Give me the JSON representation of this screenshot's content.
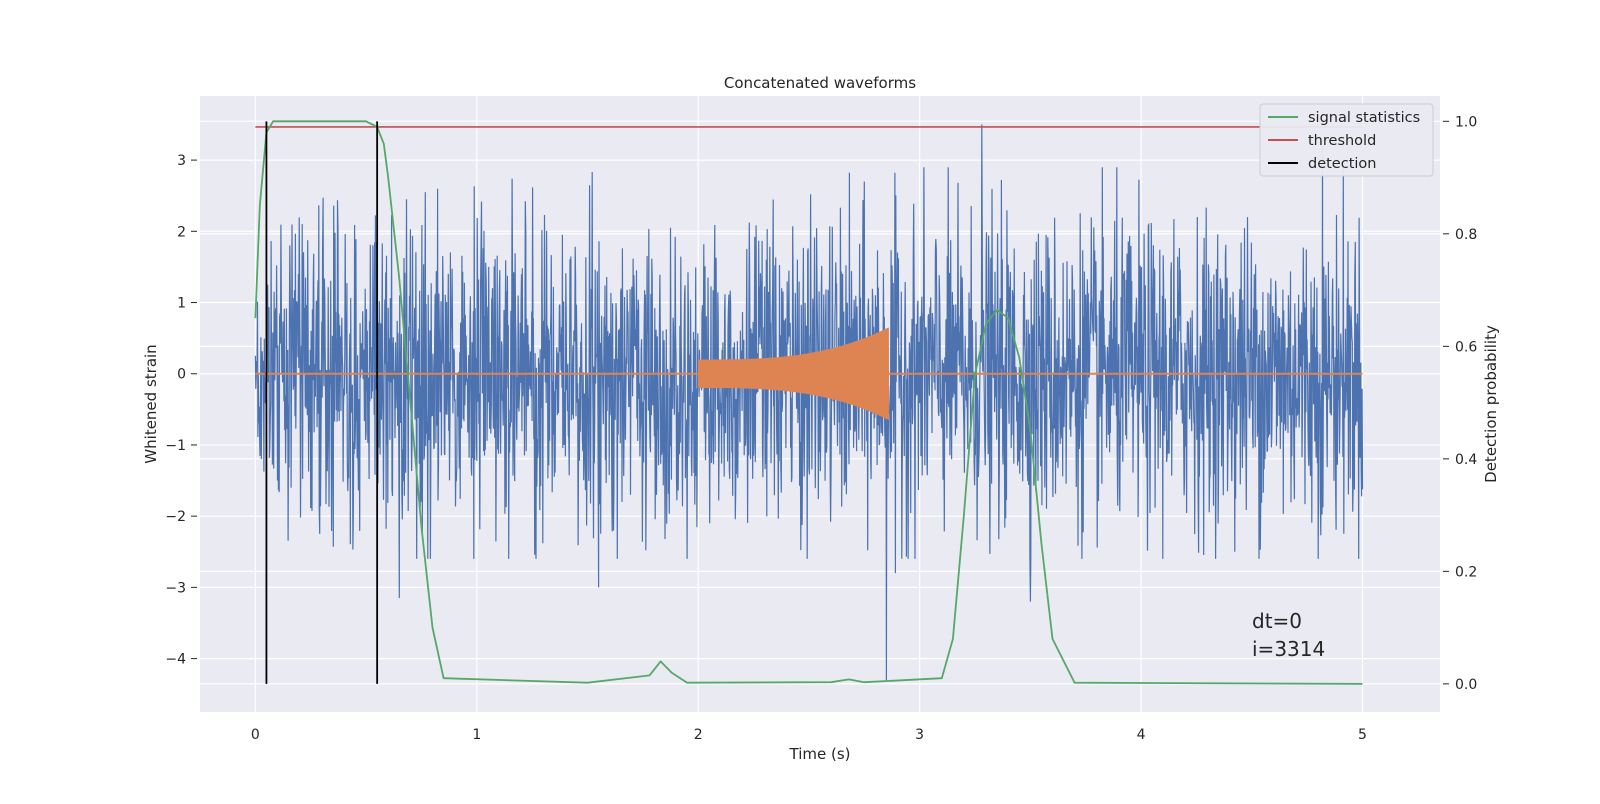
{
  "chart_data": {
    "type": "line",
    "title": "Concatenated waveforms",
    "xlabel": "Time (s)",
    "ylabel_left": "Whitened strain",
    "ylabel_right": "Detection probability",
    "xlim": [
      -0.25,
      5.35
    ],
    "ylim_left": [
      -4.75,
      3.9
    ],
    "ylim_right": [
      -0.05,
      1.045
    ],
    "x_ticks": [
      0,
      1,
      2,
      3,
      4,
      5
    ],
    "x_tick_labels": [
      "0",
      "1",
      "2",
      "3",
      "4",
      "5"
    ],
    "y_left_ticks": [
      -4,
      -3,
      -2,
      -1,
      0,
      1,
      2,
      3
    ],
    "y_left_tick_labels": [
      "−4",
      "−3",
      "−2",
      "−1",
      "0",
      "1",
      "2",
      "3"
    ],
    "y_right_ticks": [
      0.0,
      0.2,
      0.4,
      0.6,
      0.8,
      1.0
    ],
    "y_right_tick_labels": [
      "0.0",
      "0.2",
      "0.4",
      "0.6",
      "0.8",
      "1.0"
    ],
    "grid": true,
    "legend_position": "top-right",
    "legend": [
      {
        "label": "signal statistics",
        "color": "#55a868"
      },
      {
        "label": "threshold",
        "color": "#c44e52"
      },
      {
        "label": "detection",
        "color": "#000000"
      }
    ],
    "series": [
      {
        "kind": "noise",
        "axis": "left",
        "color": "#4c72b0",
        "x_range": [
          0,
          5
        ],
        "typical_amplitude": 1.3,
        "spikes": [
          [
            3.28,
            3.5
          ],
          [
            2.85,
            -4.3
          ],
          [
            2.89,
            -2.8
          ],
          [
            4.82,
            3.2
          ],
          [
            0.65,
            -3.15
          ],
          [
            1.55,
            -3.0
          ],
          [
            3.5,
            -3.2
          ]
        ]
      },
      {
        "kind": "chirp",
        "axis": "left",
        "color": "#dd8452",
        "x_range": [
          2.0,
          2.86
        ],
        "amplitude_start": 0.2,
        "amplitude_end": 0.65,
        "baseline": 0
      },
      {
        "name": "signal statistics",
        "axis": "right",
        "color": "#55a868",
        "x": [
          0,
          0.02,
          0.05,
          0.08,
          0.5,
          0.55,
          0.58,
          0.6,
          0.65,
          0.7,
          0.75,
          0.8,
          0.85,
          1.5,
          1.78,
          1.83,
          1.88,
          1.95,
          2.6,
          2.68,
          2.75,
          3.1,
          3.15,
          3.2,
          3.25,
          3.3,
          3.35,
          3.4,
          3.45,
          3.5,
          3.55,
          3.6,
          3.7,
          5.0
        ],
        "y": [
          0.65,
          0.85,
          0.98,
          1.0,
          1.0,
          0.99,
          0.96,
          0.9,
          0.72,
          0.5,
          0.28,
          0.1,
          0.01,
          0.002,
          0.015,
          0.04,
          0.02,
          0.002,
          0.003,
          0.008,
          0.003,
          0.01,
          0.08,
          0.3,
          0.55,
          0.64,
          0.665,
          0.65,
          0.58,
          0.45,
          0.25,
          0.08,
          0.002,
          0.0
        ]
      },
      {
        "name": "threshold",
        "axis": "right",
        "color": "#c44e52",
        "x": [
          0,
          5
        ],
        "y": [
          0.99,
          0.99
        ]
      },
      {
        "name": "detection",
        "axis": "right",
        "color": "#000000",
        "vlines": [
          0.05,
          0.55
        ],
        "y_range": [
          0.0,
          1.0
        ]
      }
    ],
    "annotations": [
      "dt=0",
      "i=3314"
    ]
  }
}
